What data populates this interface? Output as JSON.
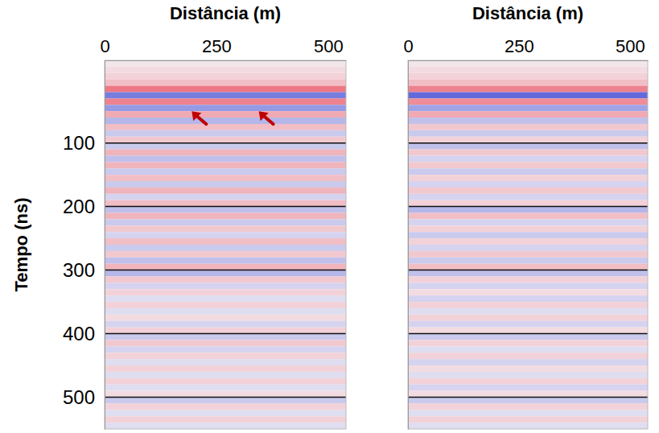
{
  "chart_data": [
    {
      "type": "heatmap",
      "x_label": "Distância (m)",
      "y_label": "Tempo (ns)",
      "xlim": [
        0,
        540
      ],
      "xticks": [
        0,
        250,
        500
      ],
      "ylim": [
        -30,
        550
      ],
      "yticks": [
        100,
        200,
        300,
        400,
        500
      ],
      "grid": true,
      "zlim": [
        -1,
        1
      ],
      "bins": [
        -30,
        -20,
        -10,
        0,
        10,
        20,
        30,
        40,
        50,
        60,
        70,
        80,
        90,
        100,
        110,
        120,
        130,
        140,
        150,
        160,
        170,
        180,
        190,
        200,
        210,
        220,
        230,
        240,
        250,
        260,
        270,
        280,
        290,
        300,
        310,
        320,
        330,
        340,
        350,
        360,
        370,
        380,
        390,
        400,
        410,
        420,
        430,
        440,
        450,
        460,
        470,
        480,
        490,
        500,
        510,
        520,
        530,
        540,
        550
      ],
      "values": [
        0.05,
        0.1,
        0.15,
        0.25,
        0.6,
        -0.6,
        0.55,
        -0.45,
        0.35,
        -0.3,
        0.25,
        -0.2,
        0.2,
        -0.2,
        0.3,
        -0.25,
        0.3,
        -0.2,
        0.25,
        -0.2,
        0.3,
        -0.15,
        0.25,
        -0.25,
        0.3,
        -0.2,
        0.2,
        -0.15,
        0.25,
        -0.2,
        0.2,
        -0.25,
        0.3,
        -0.3,
        0.2,
        -0.15,
        0.15,
        -0.1,
        0.15,
        -0.1,
        0.1,
        -0.15,
        0.15,
        -0.2,
        0.2,
        -0.15,
        0.15,
        -0.1,
        0.15,
        -0.1,
        0.15,
        -0.1,
        0.1,
        -0.2,
        0.15,
        -0.1,
        0.15,
        -0.1
      ],
      "arrows": {
        "x": [
          195,
          345
        ],
        "y": [
          50,
          50
        ]
      }
    },
    {
      "type": "heatmap",
      "x_label": "Distância (m)",
      "xlim": [
        0,
        540
      ],
      "xticks": [
        0,
        250,
        500
      ],
      "ylim": [
        -30,
        550
      ],
      "yticks": [
        100,
        200,
        300,
        400,
        500
      ],
      "grid": true,
      "tick_labels": "x",
      "zlim": [
        -1,
        1
      ],
      "bins": [
        -30,
        -20,
        -10,
        0,
        10,
        20,
        30,
        40,
        50,
        60,
        70,
        80,
        90,
        100,
        110,
        120,
        130,
        140,
        150,
        160,
        170,
        180,
        190,
        200,
        210,
        220,
        230,
        240,
        250,
        260,
        270,
        280,
        290,
        300,
        310,
        320,
        330,
        340,
        350,
        360,
        370,
        380,
        390,
        400,
        410,
        420,
        430,
        440,
        450,
        460,
        470,
        480,
        490,
        500,
        510,
        520,
        530,
        540,
        550
      ],
      "values": [
        0.05,
        0.1,
        0.15,
        0.25,
        0.55,
        -0.7,
        0.5,
        -0.4,
        0.35,
        -0.25,
        0.2,
        -0.2,
        0.15,
        -0.25,
        0.2,
        -0.15,
        0.2,
        -0.2,
        0.15,
        -0.15,
        0.2,
        -0.15,
        0.15,
        -0.3,
        0.25,
        -0.15,
        0.15,
        -0.2,
        0.15,
        -0.15,
        0.2,
        -0.2,
        0.25,
        -0.25,
        0.15,
        -0.15,
        0.1,
        -0.15,
        0.15,
        -0.1,
        0.15,
        -0.15,
        0.1,
        -0.2,
        0.15,
        -0.1,
        0.15,
        -0.15,
        0.1,
        -0.1,
        0.15,
        -0.15,
        0.1,
        -0.2,
        0.15,
        -0.1,
        0.15,
        -0.1
      ]
    }
  ]
}
